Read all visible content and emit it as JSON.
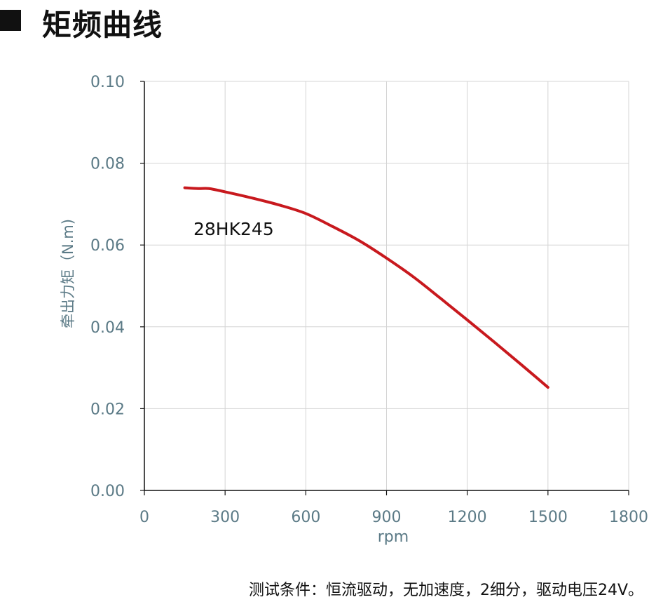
{
  "header": {
    "title": "矩频曲线"
  },
  "chart_data": {
    "type": "line",
    "title": "",
    "xlabel": "rpm",
    "ylabel": "牵出力矩（N.m)",
    "xlim": [
      0,
      1800
    ],
    "ylim": [
      0,
      0.1
    ],
    "x_ticks": [
      0,
      300,
      600,
      900,
      1200,
      1500,
      1800
    ],
    "x_tick_labels": [
      "0",
      "300",
      "600",
      "900",
      "1200",
      "1500",
      "1800"
    ],
    "y_ticks": [
      0,
      0.02,
      0.04,
      0.06,
      0.08,
      0.1
    ],
    "y_tick_labels": [
      "0.00",
      "0.02",
      "0.04",
      "0.06",
      "0.08",
      "0.10"
    ],
    "grid": true,
    "series": [
      {
        "name": "28HK245",
        "color": "#c8191e",
        "x": [
          150,
          200,
          240,
          300,
          400,
          500,
          600,
          700,
          800,
          900,
          1000,
          1100,
          1200,
          1300,
          1400,
          1500
        ],
        "y": [
          0.074,
          0.0738,
          0.0738,
          0.073,
          0.0715,
          0.0698,
          0.0677,
          0.0645,
          0.061,
          0.0568,
          0.0522,
          0.047,
          0.0417,
          0.0363,
          0.0308,
          0.0252
        ]
      }
    ]
  },
  "footer": {
    "note": "测试条件：恒流驱动，无加速度，2细分，驱动电压24V。"
  }
}
